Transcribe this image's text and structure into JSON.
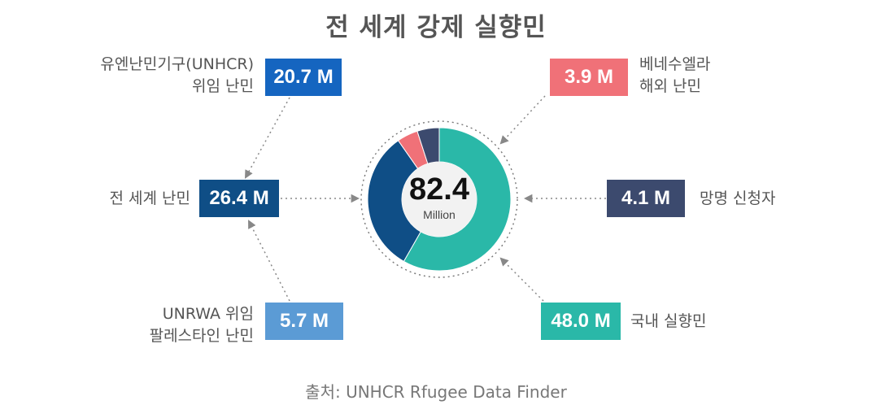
{
  "title": "전 세계 강제 실향민",
  "source": "출처: UNHCR Rfugee Data Finder",
  "colors": {
    "unhcr": "#1565c0",
    "world_refugees": "#0f4e86",
    "unrwa": "#5b9bd5",
    "venezuela": "#f07178",
    "asylum": "#3c4a6e",
    "idp": "#2ab8a8"
  },
  "boxes": {
    "unhcr": {
      "value": "20.7 M",
      "label_line1": "유엔난민기구(UNHCR)",
      "label_line2": "위임 난민"
    },
    "world": {
      "value": "26.4 M",
      "label_line1": "전 세계 난민"
    },
    "unrwa": {
      "value": "5.7 M",
      "label_line1": "UNRWA 위임",
      "label_line2": "팔레스타인 난민"
    },
    "venezuela": {
      "value": "3.9 M",
      "label_line1": "베네수엘라",
      "label_line2": "해외 난민"
    },
    "asylum": {
      "value": "4.1 M",
      "label_line1": "망명 신청자"
    },
    "idp": {
      "value": "48.0 M",
      "label_line1": "국내 실향민"
    }
  },
  "chart_data": {
    "type": "pie",
    "title": "전 세계 강제 실향민",
    "total": {
      "value": "82.4",
      "unit": "Million"
    },
    "slices": [
      {
        "name": "국내 실향민",
        "value": 48.0,
        "color": "#2ab8a8"
      },
      {
        "name": "전 세계 난민",
        "value": 26.4,
        "color": "#0f4e86"
      },
      {
        "name": "베네수엘라 해외 난민",
        "value": 3.9,
        "color": "#f07178"
      },
      {
        "name": "망명 신청자",
        "value": 4.1,
        "color": "#3c4a6e"
      }
    ]
  }
}
